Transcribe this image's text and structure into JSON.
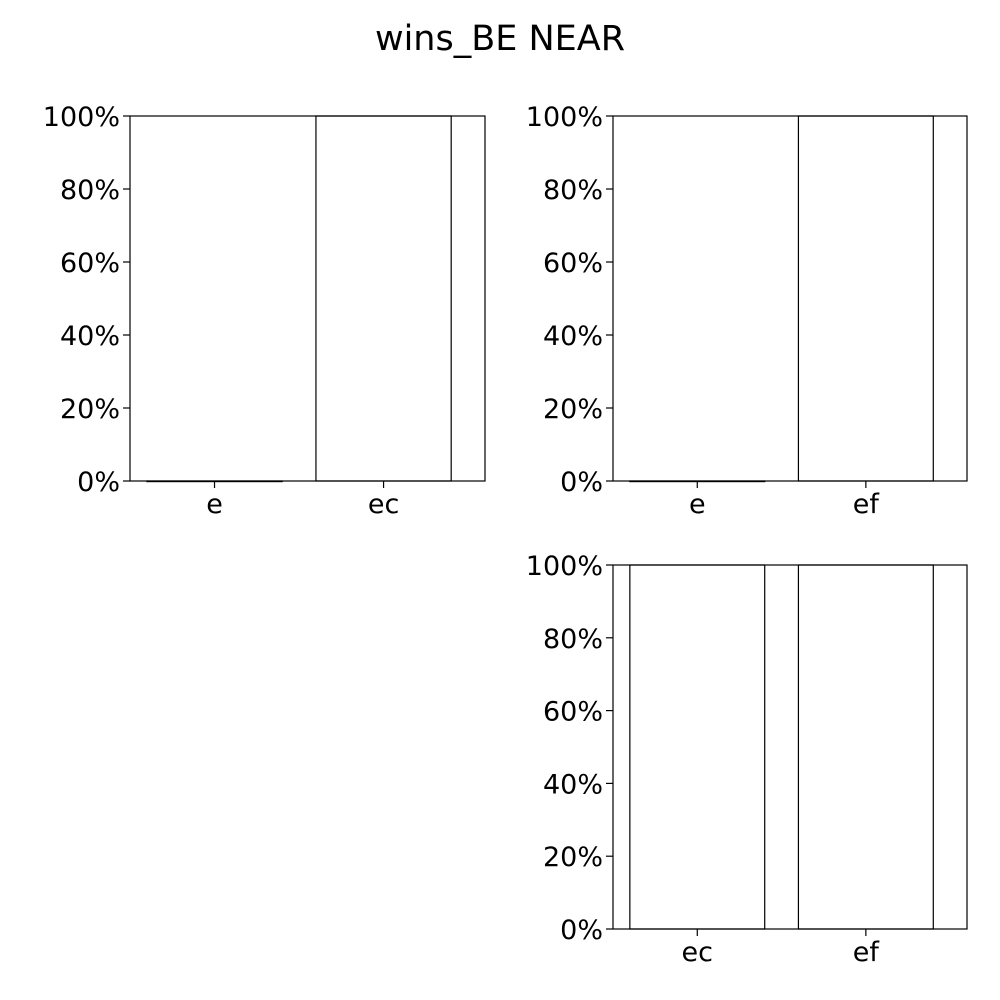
{
  "title": "wins_BE NEAR",
  "chart_data": [
    {
      "type": "bar",
      "categories": [
        "e",
        "ec"
      ],
      "values": [
        0,
        100
      ],
      "ylim": [
        0,
        100
      ],
      "yticks": [
        "0%",
        "20%",
        "40%",
        "60%",
        "80%",
        "100%"
      ],
      "grid": false
    },
    {
      "type": "bar",
      "categories": [
        "e",
        "ef"
      ],
      "values": [
        0,
        100
      ],
      "ylim": [
        0,
        100
      ],
      "yticks": [
        "0%",
        "20%",
        "40%",
        "60%",
        "80%",
        "100%"
      ],
      "grid": false
    },
    {
      "type": "bar",
      "categories": [
        "ec",
        "ef"
      ],
      "values": [
        100,
        100
      ],
      "ylim": [
        0,
        100
      ],
      "yticks": [
        "0%",
        "20%",
        "40%",
        "60%",
        "80%",
        "100%"
      ],
      "grid": false
    }
  ]
}
